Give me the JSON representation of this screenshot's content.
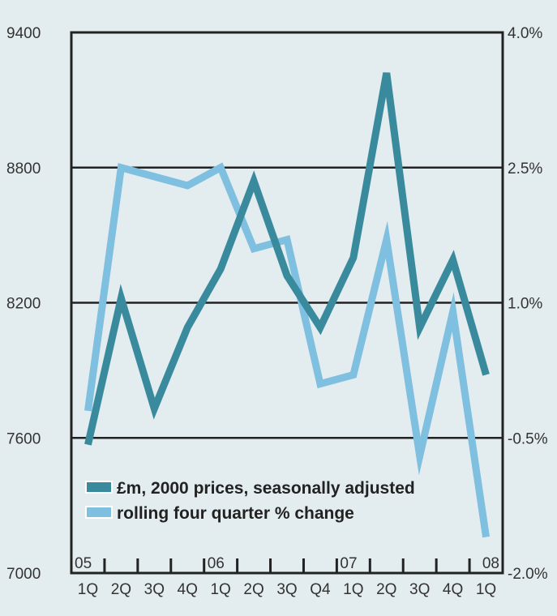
{
  "chart_data": {
    "type": "line",
    "title": "",
    "categories": [
      "1Q",
      "2Q",
      "3Q",
      "4Q",
      "1Q",
      "2Q",
      "3Q",
      "Q4",
      "1Q",
      "2Q",
      "3Q",
      "4Q",
      "1Q"
    ],
    "year_labels": [
      {
        "index": 0,
        "label": "05"
      },
      {
        "index": 4,
        "label": "06"
      },
      {
        "index": 8,
        "label": "07"
      },
      {
        "index": 12,
        "label": "08"
      }
    ],
    "left_axis": {
      "ylim": [
        7000,
        9400
      ],
      "ticks": [
        "7000",
        "7600",
        "8200",
        "8800",
        "9400"
      ],
      "tick_values": [
        7000,
        7600,
        8200,
        8800,
        9400
      ]
    },
    "right_axis": {
      "ylim": [
        -2.0,
        4.0
      ],
      "ticks": [
        "-2.0%",
        "-0.5%",
        "1.0%",
        "2.5%",
        "4.0%"
      ],
      "tick_values": [
        -2.0,
        -0.5,
        1.0,
        2.5,
        4.0
      ]
    },
    "grid": true,
    "legend_position": "bottom-left",
    "series": [
      {
        "name": "rolling four quarter % change",
        "axis": "right",
        "color": "#7fbfdf",
        "values": [
          -0.2,
          2.5,
          2.4,
          2.3,
          2.5,
          1.6,
          1.7,
          0.1,
          0.2,
          1.7,
          -0.7,
          0.9,
          -1.6
        ]
      },
      {
        "name": "£m, 2000 prices, seasonally adjusted",
        "axis": "left",
        "color": "#3a8a9e",
        "values": [
          7570,
          8220,
          7730,
          8090,
          8350,
          8740,
          8320,
          8090,
          8400,
          9220,
          8090,
          8390,
          7880
        ]
      }
    ]
  }
}
